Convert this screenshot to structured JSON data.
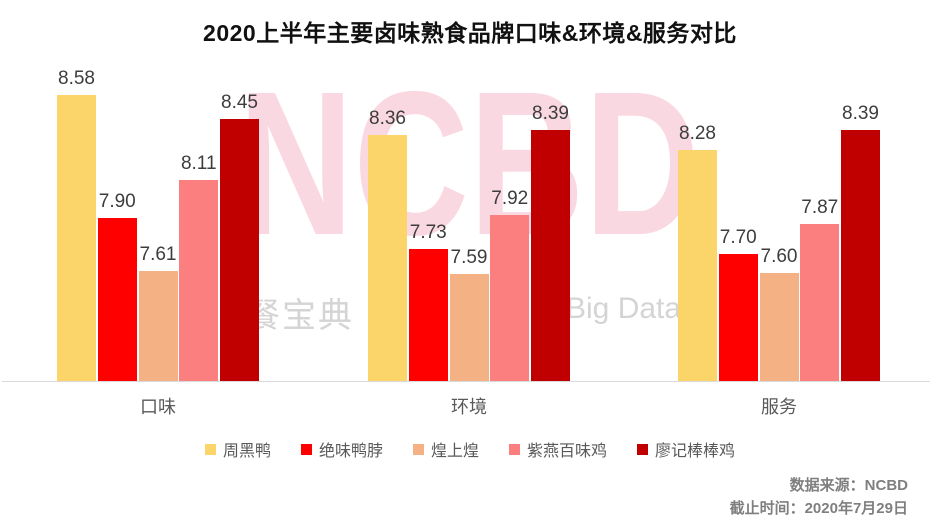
{
  "title": "2020上半年主要卤味熟食品牌口味&环境&服务对比",
  "watermark": {
    "big_text": "NCBD",
    "left_text": "餐宝典",
    "right_text": "Big Data"
  },
  "footer": {
    "source": "数据来源：NCBD",
    "cutoff": "截止时间：2020年7月29日"
  },
  "colors": {
    "zhouheiya_yellow": "#FBD56A",
    "juewei_red": "#FE0000",
    "huangshanghuang_tan": "#F4B183",
    "ziyan_salmon": "#FB7F7F",
    "liaoji_darkred": "#C00000",
    "axis_line": "#D9D9D9",
    "watermark_pink": "#FAD8E2",
    "watermark_gray": "#D4D4D4",
    "footer_gray": "#7F7F7F"
  },
  "chart_data": {
    "type": "bar",
    "title": "2020上半年主要卤味熟食品牌口味&环境&服务对比",
    "categories": [
      "口味",
      "环境",
      "服务"
    ],
    "series": [
      {
        "name": "周黑鸭",
        "color": "#FBD56A",
        "values": [
          8.58,
          8.36,
          8.28
        ]
      },
      {
        "name": "绝味鸭脖",
        "color": "#FE0000",
        "values": [
          7.9,
          7.73,
          7.7
        ]
      },
      {
        "name": "煌上煌",
        "color": "#F4B183",
        "values": [
          7.61,
          7.59,
          7.6
        ]
      },
      {
        "name": "紫燕百味鸡",
        "color": "#FB7F7F",
        "values": [
          8.11,
          7.92,
          7.87
        ]
      },
      {
        "name": "廖记棒棒鸡",
        "color": "#C00000",
        "values": [
          8.45,
          8.39,
          8.39
        ]
      }
    ],
    "value_labels": true,
    "value_label_format": "0.00",
    "xlabel": "",
    "ylabel": "",
    "ylim_estimate": [
      7.0,
      8.72
    ],
    "grid": false,
    "y_axis_shown": false,
    "legend_position": "bottom"
  }
}
